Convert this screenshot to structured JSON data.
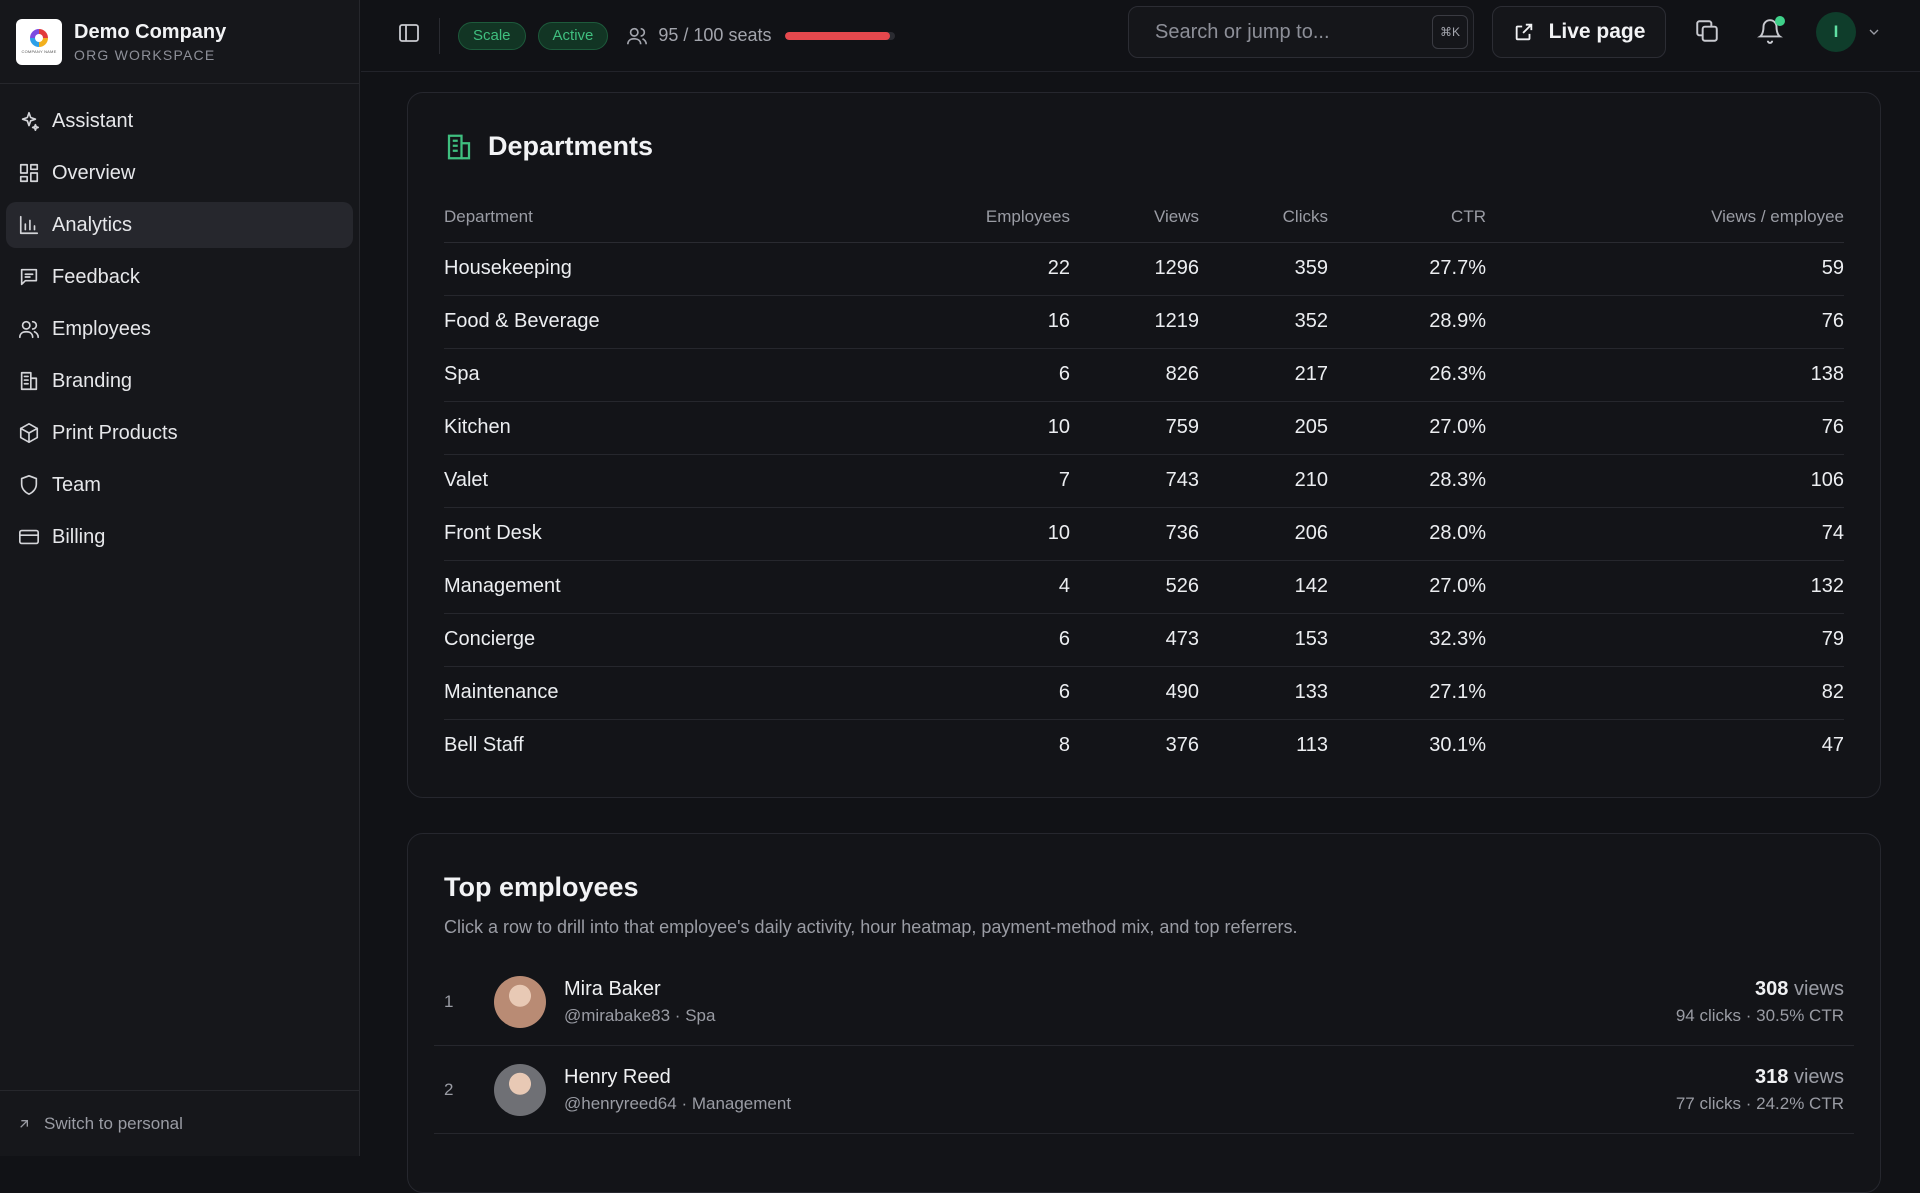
{
  "brand": {
    "name": "Demo Company",
    "subtitle": "ORG WORKSPACE",
    "logo_text": "COMPANY NAME"
  },
  "sidebar": {
    "items": [
      {
        "label": "Assistant",
        "icon": "sparkle-icon"
      },
      {
        "label": "Overview",
        "icon": "grid-icon"
      },
      {
        "label": "Analytics",
        "icon": "bar-chart-icon",
        "active": true
      },
      {
        "label": "Feedback",
        "icon": "message-icon"
      },
      {
        "label": "Employees",
        "icon": "users-icon"
      },
      {
        "label": "Branding",
        "icon": "building-icon"
      },
      {
        "label": "Print Products",
        "icon": "package-icon"
      },
      {
        "label": "Team",
        "icon": "shield-icon"
      },
      {
        "label": "Billing",
        "icon": "credit-card-icon"
      }
    ],
    "switch_label": "Switch to personal"
  },
  "topbar": {
    "plan_badge": "Scale",
    "status_badge": "Active",
    "seats_text": "95 / 100 seats",
    "seats_used": 95,
    "seats_total": 100,
    "search_placeholder": "Search or jump to...",
    "search_shortcut": "⌘K",
    "live_page_label": "Live page",
    "avatar_initial": "I",
    "accent": "#3fbf7f",
    "danger": "#e5484d"
  },
  "departments": {
    "title": "Departments",
    "columns": [
      "Department",
      "Employees",
      "Views",
      "Clicks",
      "CTR",
      "Views / employee"
    ],
    "rows": [
      [
        "Housekeeping",
        "22",
        "1296",
        "359",
        "27.7%",
        "59"
      ],
      [
        "Food & Beverage",
        "16",
        "1219",
        "352",
        "28.9%",
        "76"
      ],
      [
        "Spa",
        "6",
        "826",
        "217",
        "26.3%",
        "138"
      ],
      [
        "Kitchen",
        "10",
        "759",
        "205",
        "27.0%",
        "76"
      ],
      [
        "Valet",
        "7",
        "743",
        "210",
        "28.3%",
        "106"
      ],
      [
        "Front Desk",
        "10",
        "736",
        "206",
        "28.0%",
        "74"
      ],
      [
        "Management",
        "4",
        "526",
        "142",
        "27.0%",
        "132"
      ],
      [
        "Concierge",
        "6",
        "473",
        "153",
        "32.3%",
        "79"
      ],
      [
        "Maintenance",
        "6",
        "490",
        "133",
        "27.1%",
        "82"
      ],
      [
        "Bell Staff",
        "8",
        "376",
        "113",
        "30.1%",
        "47"
      ]
    ]
  },
  "top_employees": {
    "title": "Top employees",
    "subtitle": "Click a row to drill into that employee's daily activity, hour heatmap, payment-method mix, and top referrers.",
    "views_suffix": "views",
    "rows": [
      {
        "rank": "1",
        "name": "Mira Baker",
        "meta": "@mirabake83 · Spa",
        "views": "308",
        "stats": "94 clicks · 30.5% CTR",
        "avatar_color": "#b98b74"
      },
      {
        "rank": "2",
        "name": "Henry Reed",
        "meta": "@henryreed64 · Management",
        "views": "318",
        "stats": "77 clicks · 24.2% CTR",
        "avatar_color": "#6f7075"
      }
    ]
  }
}
